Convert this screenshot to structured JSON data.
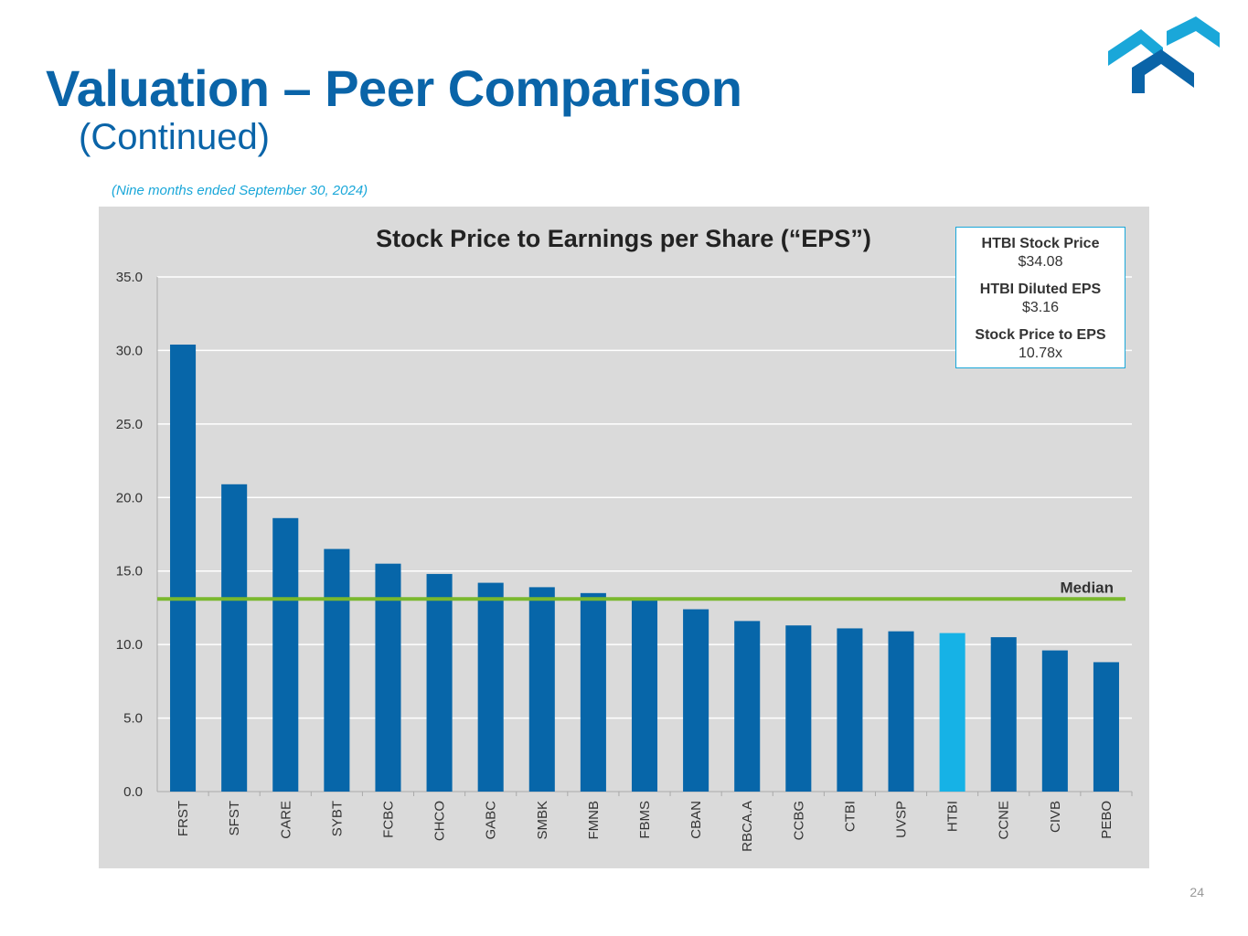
{
  "header": {
    "title": "Valuation – Peer Comparison",
    "subtitle": "(Continued)",
    "period": "(Nine months ended September 30, 2024)"
  },
  "info_box": {
    "price_label": "HTBI Stock Price",
    "price_value": "$34.08",
    "eps_label": "HTBI Diluted EPS",
    "eps_value": "$3.16",
    "ratio_label": "Stock Price to EPS",
    "ratio_value": "10.78x"
  },
  "page_number": "24",
  "colors": {
    "bar": "#0766a9",
    "highlight_bar": "#16b2e6",
    "median_line": "#7ab82e",
    "gridline": "#ffffff",
    "panel": "#dadada"
  },
  "chart_data": {
    "type": "bar",
    "title": "Stock Price to Earnings per Share (“EPS”)",
    "xlabel": "",
    "ylabel": "",
    "ylim": [
      0,
      35
    ],
    "yticks": [
      0,
      5,
      10,
      15,
      20,
      25,
      30,
      35
    ],
    "ytick_labels": [
      "0.0",
      "5.0",
      "10.0",
      "15.0",
      "20.0",
      "25.0",
      "30.0",
      "35.0"
    ],
    "grid": true,
    "categories": [
      "FRST",
      "SFST",
      "CARE",
      "SYBT",
      "FCBC",
      "CHCO",
      "GABC",
      "SMBK",
      "FMNB",
      "FBMS",
      "CBAN",
      "RBCA.A",
      "CCBG",
      "CTBI",
      "UVSP",
      "HTBI",
      "CCNE",
      "CIVB",
      "PEBO"
    ],
    "values": [
      30.4,
      20.9,
      18.6,
      16.5,
      15.5,
      14.8,
      14.2,
      13.9,
      13.5,
      13.0,
      12.4,
      11.6,
      11.3,
      11.1,
      10.9,
      10.78,
      10.5,
      9.6,
      8.8
    ],
    "highlight": "HTBI",
    "median": 13.1,
    "median_label": "Median"
  }
}
